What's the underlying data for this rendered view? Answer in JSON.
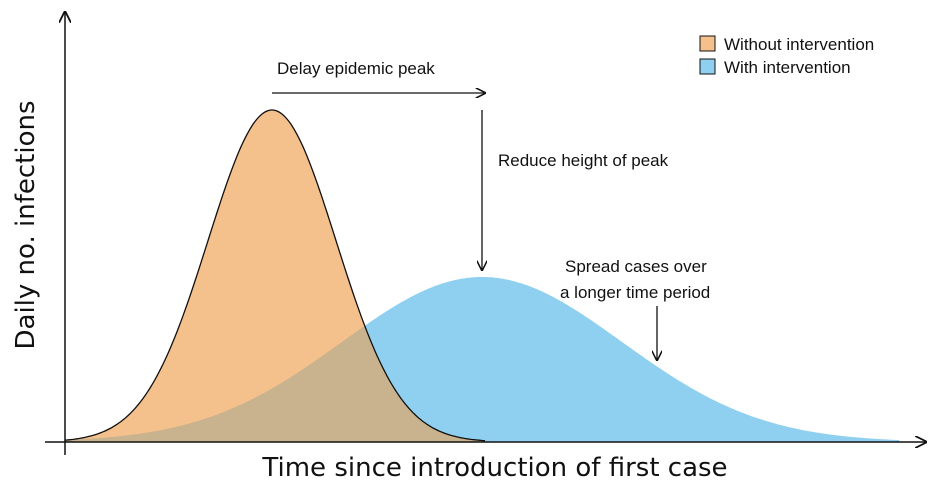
{
  "legend": {
    "items": [
      "Without intervention",
      "With intervention"
    ]
  },
  "annotations": {
    "delay": "Delay epidemic peak",
    "reduce": "Reduce height of peak",
    "spread": [
      "Spread cases over",
      "a longer time period"
    ]
  },
  "axes": {
    "y_label": "Daily no. infections",
    "x_label": "Time since introduction of first case"
  }
}
